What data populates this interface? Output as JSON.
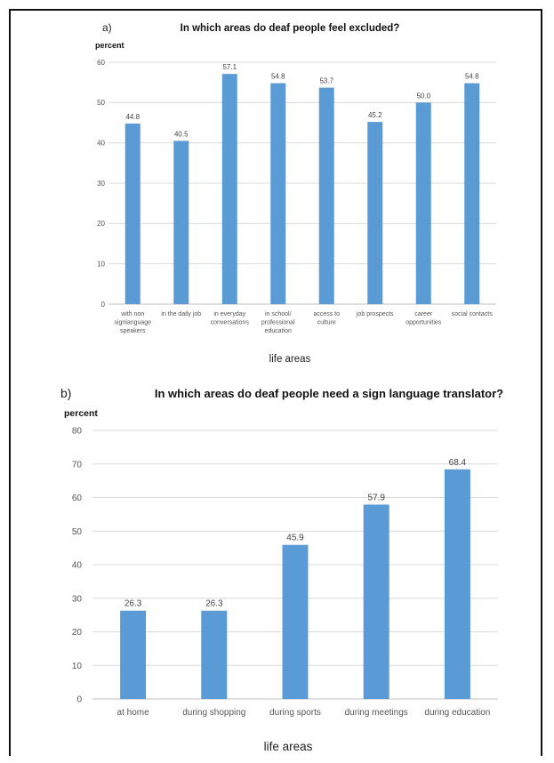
{
  "chart_data": [
    {
      "type": "bar",
      "panel": "a)",
      "title": "In which areas do deaf people feel excluded?",
      "ylabel": "percent",
      "xlabel": "life areas",
      "ylim": [
        0,
        60
      ],
      "yticks": [
        0,
        10,
        20,
        30,
        40,
        50,
        60
      ],
      "categories": [
        [
          "with non",
          "signlanguage",
          "speakers"
        ],
        [
          "in the daily job"
        ],
        [
          "in everyday",
          "conversations"
        ],
        [
          "in school/",
          "professional",
          "education"
        ],
        [
          "access to",
          "culture"
        ],
        [
          "job prospects"
        ],
        [
          "career",
          "opportunities"
        ],
        [
          "social contacts"
        ]
      ],
      "values": [
        44.8,
        40.5,
        57.1,
        54.8,
        53.7,
        45.2,
        50.0,
        54.8
      ],
      "value_labels": [
        "44.8",
        "40.5",
        "57.1",
        "54.8",
        "53.7",
        "45.2",
        "50.0",
        "54.8"
      ],
      "bar_color": "#5b9bd5",
      "grid": true
    },
    {
      "type": "bar",
      "panel": "b)",
      "title": "In which areas do deaf people need a sign language translator?",
      "ylabel": "percent",
      "xlabel": "life areas",
      "ylim": [
        0,
        80
      ],
      "yticks": [
        0,
        10,
        20,
        30,
        40,
        50,
        60,
        70,
        80
      ],
      "categories": [
        [
          "at home"
        ],
        [
          "during shopping"
        ],
        [
          "during sports"
        ],
        [
          "during meetings"
        ],
        [
          "during education"
        ]
      ],
      "values": [
        26.3,
        26.3,
        45.9,
        57.9,
        68.4
      ],
      "value_labels": [
        "26.3",
        "26.3",
        "45.9",
        "57.9",
        "68.4"
      ],
      "bar_color": "#5b9bd5",
      "grid": true
    }
  ]
}
